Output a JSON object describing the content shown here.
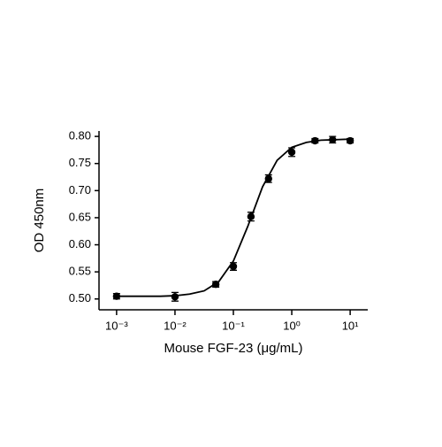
{
  "chart_data": {
    "type": "scatter",
    "x_label": "Mouse FGF-23 (μg/mL)",
    "y_label": "OD 450nm",
    "x_scale": "log",
    "color": "#000000",
    "xlim": [
      0.0005,
      20
    ],
    "ylim": [
      0.48,
      0.81
    ],
    "xticks": [
      {
        "value": 0.001,
        "label": "10⁻³"
      },
      {
        "value": 0.01,
        "label": "10⁻²"
      },
      {
        "value": 0.1,
        "label": "10⁻¹"
      },
      {
        "value": 1,
        "label": "10⁰"
      },
      {
        "value": 10,
        "label": "10¹"
      }
    ],
    "yticks": [
      {
        "value": 0.5,
        "label": "0.50"
      },
      {
        "value": 0.55,
        "label": "0.55"
      },
      {
        "value": 0.6,
        "label": "0.60"
      },
      {
        "value": 0.65,
        "label": "0.65"
      },
      {
        "value": 0.7,
        "label": "0.70"
      },
      {
        "value": 0.75,
        "label": "0.75"
      },
      {
        "value": 0.8,
        "label": "0.80"
      }
    ],
    "points": {
      "x": [
        0.001,
        0.01,
        0.05,
        0.1,
        0.2,
        0.4,
        1,
        2.5,
        5,
        10
      ],
      "y": [
        0.505,
        0.504,
        0.527,
        0.56,
        0.652,
        0.722,
        0.771,
        0.792,
        0.794,
        0.792
      ],
      "err": [
        0.005,
        0.008,
        0.005,
        0.007,
        0.008,
        0.007,
        0.008,
        0.004,
        0.006,
        0.004
      ]
    },
    "curve": {
      "x": [
        0.001,
        0.00178,
        0.00316,
        0.00562,
        0.01,
        0.0178,
        0.0316,
        0.0562,
        0.1,
        0.178,
        0.316,
        0.562,
        1,
        1.78,
        3.16,
        5.62,
        10
      ],
      "y": [
        0.505,
        0.505,
        0.505,
        0.505,
        0.506,
        0.509,
        0.515,
        0.532,
        0.57,
        0.635,
        0.707,
        0.756,
        0.78,
        0.789,
        0.793,
        0.794,
        0.795
      ]
    }
  }
}
